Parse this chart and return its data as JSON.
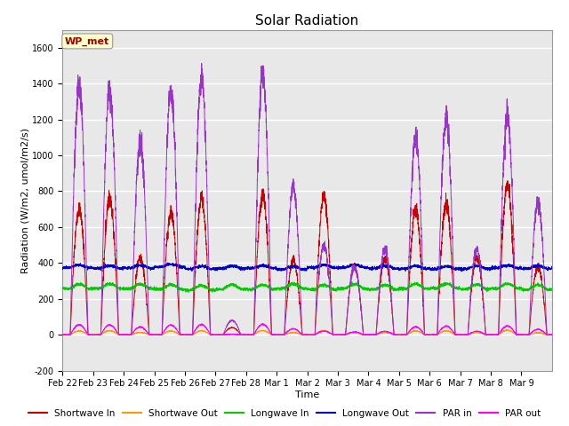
{
  "title": "Solar Radiation",
  "xlabel": "Time",
  "ylabel": "Radiation (W/m2, umol/m2/s)",
  "ylim": [
    -200,
    1700
  ],
  "yticks": [
    -200,
    0,
    200,
    400,
    600,
    800,
    1000,
    1200,
    1400,
    1600
  ],
  "x_labels": [
    "Feb 22",
    "Feb 23",
    "Feb 24",
    "Feb 25",
    "Feb 26",
    "Feb 27",
    "Feb 28",
    "Mar 1",
    "Mar 2",
    "Mar 3",
    "Mar 4",
    "Mar 5",
    "Mar 6",
    "Mar 7",
    "Mar 8",
    "Mar 9"
  ],
  "num_days": 16,
  "legend_label": "WP_met",
  "colors": {
    "shortwave_in": "#cc0000",
    "shortwave_out": "#ff9900",
    "longwave_in": "#00cc00",
    "longwave_out": "#0000cc",
    "par_in": "#9933cc",
    "par_out": "#ff00ff"
  },
  "plot_bg_color": "#e8e8e8",
  "grid_color": "#ffffff",
  "title_fontsize": 11,
  "label_fontsize": 8,
  "tick_fontsize": 7,
  "sw_peaks": [
    700,
    760,
    430,
    680,
    760,
    40,
    780,
    420,
    770,
    380,
    430,
    700,
    730,
    430,
    840,
    380
  ],
  "par_peaks": [
    1390,
    1370,
    1080,
    1350,
    1430,
    80,
    1460,
    820,
    500,
    380,
    480,
    1100,
    1210,
    480,
    1220,
    740
  ],
  "lw_out_base": 370,
  "lw_in_base": 255
}
